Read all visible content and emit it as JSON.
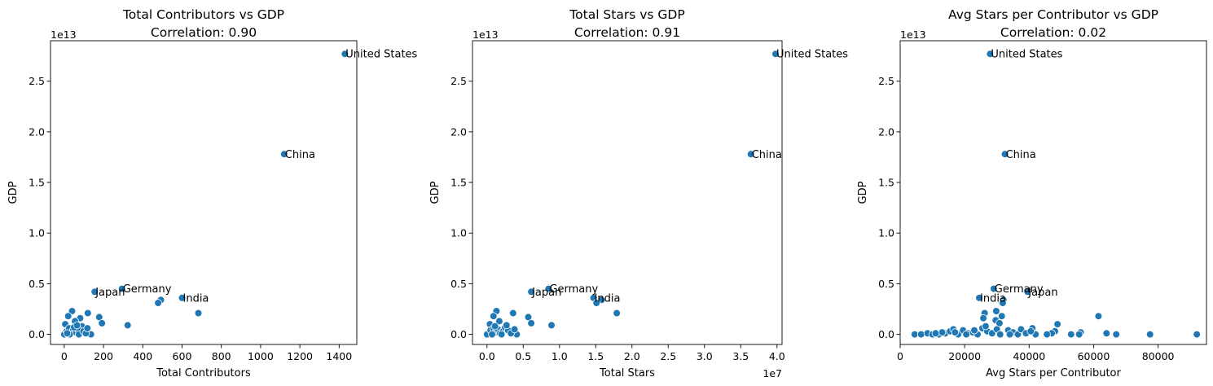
{
  "figure": {
    "point_color": "#1f77b4",
    "y_multiplier_label": "1e13"
  },
  "chart_data": [
    {
      "type": "scatter",
      "title_line1": "Total Contributors vs GDP",
      "title_line2": "Correlation: 0.90",
      "xlabel": "Total Contributors",
      "ylabel": "GDP",
      "x_multiplier_label": "",
      "y_multiplier_label": "1e13",
      "xlim": [
        -70,
        1490
      ],
      "ylim": [
        -0.1,
        2.9
      ],
      "xticks": [
        0,
        200,
        400,
        600,
        800,
        1000,
        1200,
        1400
      ],
      "xtick_labels": [
        "0",
        "200",
        "400",
        "600",
        "800",
        "1000",
        "1200",
        "1400"
      ],
      "yticks": [
        0.0,
        0.5,
        1.0,
        1.5,
        2.0,
        2.5
      ],
      "ytick_labels": [
        "0.0",
        "0.5",
        "1.0",
        "1.5",
        "2.0",
        "2.5"
      ],
      "points": [
        {
          "x": 1429,
          "y": 2.77,
          "label": "United States"
        },
        {
          "x": 1120,
          "y": 1.78,
          "label": "China"
        },
        {
          "x": 294,
          "y": 0.45,
          "label": "Germany"
        },
        {
          "x": 155,
          "y": 0.42,
          "label": "Japan"
        },
        {
          "x": 600,
          "y": 0.36,
          "label": "India"
        },
        {
          "x": 492,
          "y": 0.34,
          "label": ""
        },
        {
          "x": 478,
          "y": 0.31,
          "label": ""
        },
        {
          "x": 683,
          "y": 0.21,
          "label": ""
        },
        {
          "x": 323,
          "y": 0.09,
          "label": ""
        },
        {
          "x": 178,
          "y": 0.17,
          "label": ""
        },
        {
          "x": 192,
          "y": 0.11,
          "label": ""
        },
        {
          "x": 120,
          "y": 0.21,
          "label": ""
        },
        {
          "x": 136,
          "y": 0.0,
          "label": ""
        },
        {
          "x": 81,
          "y": 0.16,
          "label": ""
        },
        {
          "x": 90,
          "y": 0.08,
          "label": ""
        },
        {
          "x": 40,
          "y": 0.23,
          "label": ""
        },
        {
          "x": 55,
          "y": 0.13,
          "label": ""
        },
        {
          "x": 20,
          "y": 0.18,
          "label": ""
        },
        {
          "x": 5,
          "y": 0.1,
          "label": ""
        },
        {
          "x": 0,
          "y": 0.0,
          "label": ""
        },
        {
          "x": 12,
          "y": 0.03,
          "label": ""
        },
        {
          "x": 25,
          "y": 0.06,
          "label": ""
        },
        {
          "x": 35,
          "y": 0.01,
          "label": ""
        },
        {
          "x": 45,
          "y": 0.04,
          "label": ""
        },
        {
          "x": 60,
          "y": 0.02,
          "label": ""
        },
        {
          "x": 70,
          "y": 0.05,
          "label": ""
        },
        {
          "x": 75,
          "y": 0.0,
          "label": ""
        },
        {
          "x": 98,
          "y": 0.03,
          "label": ""
        },
        {
          "x": 110,
          "y": 0.01,
          "label": ""
        },
        {
          "x": 118,
          "y": 0.06,
          "label": ""
        },
        {
          "x": 28,
          "y": 0.0,
          "label": ""
        },
        {
          "x": 50,
          "y": 0.07,
          "label": ""
        },
        {
          "x": 65,
          "y": 0.09,
          "label": ""
        },
        {
          "x": 15,
          "y": 0.01,
          "label": ""
        }
      ]
    },
    {
      "type": "scatter",
      "title_line1": "Total Stars vs GDP",
      "title_line2": "Correlation: 0.91",
      "xlabel": "Total Stars",
      "ylabel": "GDP",
      "x_multiplier_label": "1e7",
      "y_multiplier_label": "1e13",
      "xlim": [
        -0.2,
        4.07
      ],
      "ylim": [
        -0.1,
        2.9
      ],
      "xticks": [
        0.0,
        0.5,
        1.0,
        1.5,
        2.0,
        2.5,
        3.0,
        3.5,
        4.0
      ],
      "xtick_labels": [
        "0.0",
        "0.5",
        "1.0",
        "1.5",
        "2.0",
        "2.5",
        "3.0",
        "3.5",
        "4.0"
      ],
      "yticks": [
        0.0,
        0.5,
        1.0,
        1.5,
        2.0,
        2.5
      ],
      "ytick_labels": [
        "0.0",
        "0.5",
        "1.0",
        "1.5",
        "2.0",
        "2.5"
      ],
      "points": [
        {
          "x": 3.98,
          "y": 2.77,
          "label": "United States"
        },
        {
          "x": 3.64,
          "y": 1.78,
          "label": "China"
        },
        {
          "x": 0.85,
          "y": 0.45,
          "label": "Germany"
        },
        {
          "x": 0.61,
          "y": 0.42,
          "label": "Japan"
        },
        {
          "x": 1.47,
          "y": 0.36,
          "label": "India"
        },
        {
          "x": 1.58,
          "y": 0.34,
          "label": ""
        },
        {
          "x": 1.51,
          "y": 0.31,
          "label": ""
        },
        {
          "x": 1.79,
          "y": 0.21,
          "label": ""
        },
        {
          "x": 0.89,
          "y": 0.09,
          "label": ""
        },
        {
          "x": 0.57,
          "y": 0.17,
          "label": ""
        },
        {
          "x": 0.61,
          "y": 0.11,
          "label": ""
        },
        {
          "x": 0.36,
          "y": 0.21,
          "label": ""
        },
        {
          "x": 0.41,
          "y": 0.0,
          "label": ""
        },
        {
          "x": 0.13,
          "y": 0.23,
          "label": ""
        },
        {
          "x": 0.09,
          "y": 0.18,
          "label": ""
        },
        {
          "x": 0.17,
          "y": 0.13,
          "label": ""
        },
        {
          "x": 0.04,
          "y": 0.1,
          "label": ""
        },
        {
          "x": 0.0,
          "y": 0.0,
          "label": ""
        },
        {
          "x": 0.05,
          "y": 0.04,
          "label": ""
        },
        {
          "x": 0.09,
          "y": 0.06,
          "label": ""
        },
        {
          "x": 0.12,
          "y": 0.02,
          "label": ""
        },
        {
          "x": 0.15,
          "y": 0.05,
          "label": ""
        },
        {
          "x": 0.18,
          "y": 0.01,
          "label": ""
        },
        {
          "x": 0.22,
          "y": 0.03,
          "label": ""
        },
        {
          "x": 0.25,
          "y": 0.07,
          "label": ""
        },
        {
          "x": 0.29,
          "y": 0.04,
          "label": ""
        },
        {
          "x": 0.33,
          "y": 0.01,
          "label": ""
        },
        {
          "x": 0.38,
          "y": 0.05,
          "label": ""
        },
        {
          "x": 0.07,
          "y": 0.0,
          "label": ""
        },
        {
          "x": 0.2,
          "y": 0.0,
          "label": ""
        },
        {
          "x": 0.27,
          "y": 0.09,
          "label": ""
        },
        {
          "x": 0.11,
          "y": 0.08,
          "label": ""
        }
      ]
    },
    {
      "type": "scatter",
      "title_line1": "Avg Stars per Contributor vs GDP",
      "title_line2": "Correlation: 0.02",
      "xlabel": "Avg Stars per Contributor",
      "ylabel": "GDP",
      "x_multiplier_label": "",
      "y_multiplier_label": "1e13",
      "xlim": [
        0,
        95000
      ],
      "ylim": [
        -0.1,
        2.9
      ],
      "xticks": [
        0,
        20000,
        40000,
        60000,
        80000
      ],
      "xtick_labels": [
        "0",
        "20000",
        "40000",
        "60000",
        "80000"
      ],
      "yticks": [
        0.0,
        0.5,
        1.0,
        1.5,
        2.0,
        2.5
      ],
      "ytick_labels": [
        "0.0",
        "0.5",
        "1.0",
        "1.5",
        "2.0",
        "2.5"
      ],
      "points": [
        {
          "x": 27900,
          "y": 2.77,
          "label": "United States"
        },
        {
          "x": 32500,
          "y": 1.78,
          "label": "China"
        },
        {
          "x": 29000,
          "y": 0.45,
          "label": "Germany"
        },
        {
          "x": 39500,
          "y": 0.42,
          "label": "Japan"
        },
        {
          "x": 24500,
          "y": 0.36,
          "label": "India"
        },
        {
          "x": 32000,
          "y": 0.34,
          "label": ""
        },
        {
          "x": 31800,
          "y": 0.31,
          "label": ""
        },
        {
          "x": 26200,
          "y": 0.21,
          "label": ""
        },
        {
          "x": 29800,
          "y": 0.23,
          "label": ""
        },
        {
          "x": 31500,
          "y": 0.18,
          "label": ""
        },
        {
          "x": 25800,
          "y": 0.16,
          "label": ""
        },
        {
          "x": 29600,
          "y": 0.14,
          "label": ""
        },
        {
          "x": 30800,
          "y": 0.11,
          "label": ""
        },
        {
          "x": 61500,
          "y": 0.18,
          "label": ""
        },
        {
          "x": 48800,
          "y": 0.1,
          "label": ""
        },
        {
          "x": 41000,
          "y": 0.06,
          "label": ""
        },
        {
          "x": 48000,
          "y": 0.03,
          "label": ""
        },
        {
          "x": 56000,
          "y": 0.02,
          "label": ""
        },
        {
          "x": 92000,
          "y": 0.0,
          "label": ""
        },
        {
          "x": 77500,
          "y": 0.0,
          "label": ""
        },
        {
          "x": 67000,
          "y": 0.0,
          "label": ""
        },
        {
          "x": 64000,
          "y": 0.01,
          "label": ""
        },
        {
          "x": 55500,
          "y": 0.0,
          "label": ""
        },
        {
          "x": 53000,
          "y": 0.0,
          "label": ""
        },
        {
          "x": 47000,
          "y": 0.01,
          "label": ""
        },
        {
          "x": 45500,
          "y": 0.0,
          "label": ""
        },
        {
          "x": 42000,
          "y": 0.0,
          "label": ""
        },
        {
          "x": 4500,
          "y": 0.0,
          "label": ""
        },
        {
          "x": 6500,
          "y": 0.0,
          "label": ""
        },
        {
          "x": 8500,
          "y": 0.01,
          "label": ""
        },
        {
          "x": 10000,
          "y": 0.0,
          "label": ""
        },
        {
          "x": 12000,
          "y": 0.0,
          "label": ""
        },
        {
          "x": 14000,
          "y": 0.01,
          "label": ""
        },
        {
          "x": 15500,
          "y": 0.03,
          "label": ""
        },
        {
          "x": 16500,
          "y": 0.05,
          "label": ""
        },
        {
          "x": 18000,
          "y": 0.0,
          "label": ""
        },
        {
          "x": 19500,
          "y": 0.04,
          "label": ""
        },
        {
          "x": 21000,
          "y": 0.01,
          "label": ""
        },
        {
          "x": 22500,
          "y": 0.02,
          "label": ""
        },
        {
          "x": 24000,
          "y": 0.0,
          "label": ""
        },
        {
          "x": 25500,
          "y": 0.06,
          "label": ""
        },
        {
          "x": 27000,
          "y": 0.03,
          "label": ""
        },
        {
          "x": 28500,
          "y": 0.01,
          "label": ""
        },
        {
          "x": 30000,
          "y": 0.05,
          "label": ""
        },
        {
          "x": 31000,
          "y": 0.0,
          "label": ""
        },
        {
          "x": 33500,
          "y": 0.04,
          "label": ""
        },
        {
          "x": 35000,
          "y": 0.02,
          "label": ""
        },
        {
          "x": 36500,
          "y": 0.0,
          "label": ""
        },
        {
          "x": 37500,
          "y": 0.05,
          "label": ""
        },
        {
          "x": 39000,
          "y": 0.01,
          "label": ""
        },
        {
          "x": 40500,
          "y": 0.03,
          "label": ""
        },
        {
          "x": 17000,
          "y": 0.02,
          "label": ""
        },
        {
          "x": 20500,
          "y": 0.0,
          "label": ""
        },
        {
          "x": 23000,
          "y": 0.04,
          "label": ""
        },
        {
          "x": 26500,
          "y": 0.08,
          "label": ""
        },
        {
          "x": 34000,
          "y": 0.0,
          "label": ""
        },
        {
          "x": 13000,
          "y": 0.02,
          "label": ""
        },
        {
          "x": 11000,
          "y": 0.01,
          "label": ""
        }
      ]
    }
  ]
}
